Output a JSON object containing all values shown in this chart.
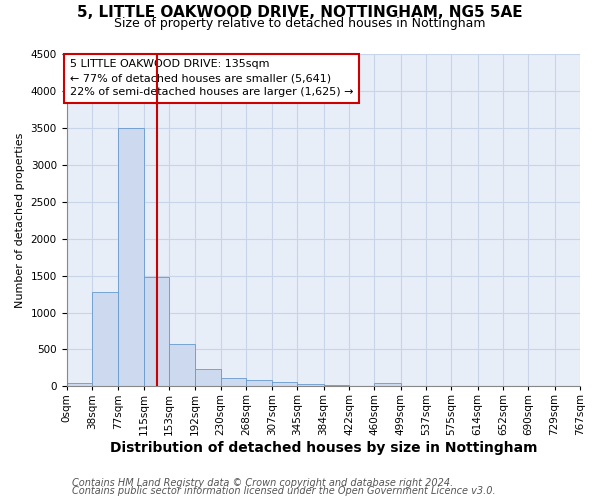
{
  "title_line1": "5, LITTLE OAKWOOD DRIVE, NOTTINGHAM, NG5 5AE",
  "title_line2": "Size of property relative to detached houses in Nottingham",
  "xlabel": "Distribution of detached houses by size in Nottingham",
  "ylabel": "Number of detached properties",
  "bar_edges": [
    0,
    38,
    77,
    115,
    153,
    192,
    230,
    268,
    307,
    345,
    384,
    422,
    460,
    499,
    537,
    575,
    614,
    652,
    690,
    729,
    767
  ],
  "bar_heights": [
    40,
    1280,
    3500,
    1480,
    575,
    240,
    115,
    85,
    55,
    30,
    15,
    10,
    50,
    5,
    0,
    0,
    0,
    0,
    0,
    0
  ],
  "bar_color": "#ccd9ef",
  "bar_edge_color": "#6699cc",
  "vline_x": 135,
  "vline_color": "#cc0000",
  "annotation_text": "5 LITTLE OAKWOOD DRIVE: 135sqm\n← 77% of detached houses are smaller (5,641)\n22% of semi-detached houses are larger (1,625) →",
  "annotation_box_edgecolor": "#cc0000",
  "annotation_box_facecolor": "#ffffff",
  "ylim": [
    0,
    4500
  ],
  "yticks": [
    0,
    500,
    1000,
    1500,
    2000,
    2500,
    3000,
    3500,
    4000,
    4500
  ],
  "grid_color": "#c8d4e8",
  "background_color": "#e8eef8",
  "footer_line1": "Contains HM Land Registry data © Crown copyright and database right 2024.",
  "footer_line2": "Contains public sector information licensed under the Open Government Licence v3.0.",
  "title_fontsize": 11,
  "subtitle_fontsize": 9,
  "xlabel_fontsize": 10,
  "ylabel_fontsize": 8,
  "tick_fontsize": 7.5,
  "annotation_fontsize": 8,
  "footer_fontsize": 7
}
